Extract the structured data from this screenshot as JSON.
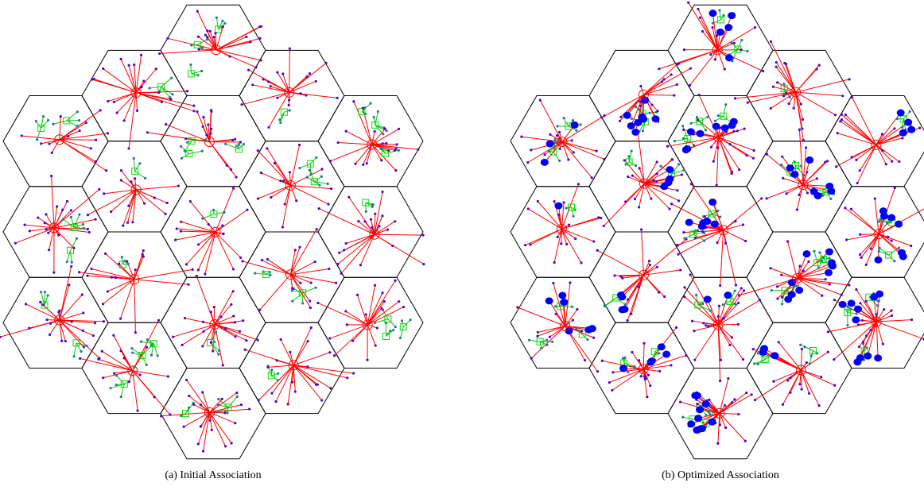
{
  "figure": {
    "panels": [
      {
        "id": "a",
        "caption": "(a) Initial Association",
        "optimized": false
      },
      {
        "id": "b",
        "caption": "(b) Optimized Association",
        "optimized": true
      }
    ]
  },
  "colors": {
    "hex_edge": "#000000",
    "macro_link": "#ff0000",
    "macro_bs": "#ff0000",
    "small_link": "#00cc00",
    "small_cell": "#00e000",
    "user": "#5a00c8",
    "small_user": "#1f7a9a",
    "offloaded_user": "#0000ff"
  }
}
